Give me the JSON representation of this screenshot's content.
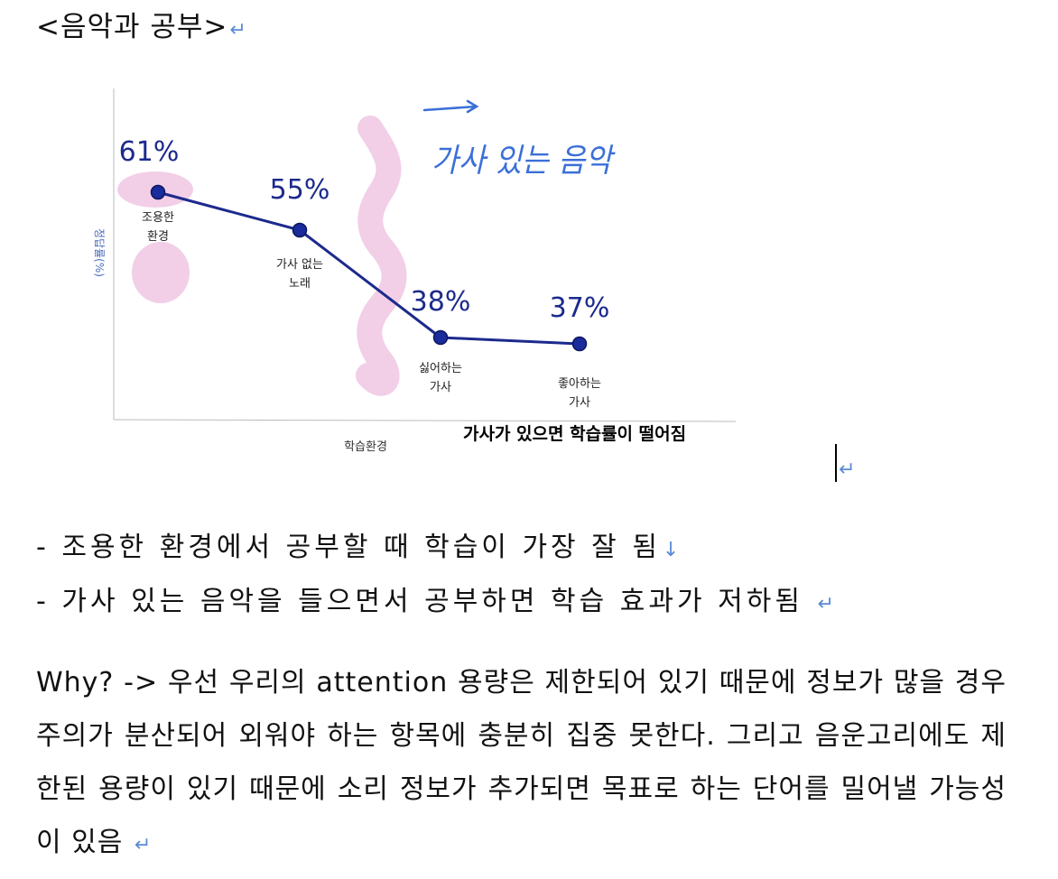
{
  "heading": "<음악과 공부>",
  "paragraph_mark": "↵",
  "line_break_mark": "↓",
  "chart_data": {
    "type": "line",
    "ylabel": "정답률(%)",
    "xlabel": "학습환경",
    "categories": [
      "조용한 환경",
      "가사 없는 노래",
      "싫어하는 가사",
      "좋아하는 가사"
    ],
    "category_lines": [
      [
        "조용한",
        "환경"
      ],
      [
        "가사 없는",
        "노래"
      ],
      [
        "싫어하는",
        "가사"
      ],
      [
        "좋아하는",
        "가사"
      ]
    ],
    "values": [
      61,
      55,
      38,
      37
    ],
    "value_labels": [
      "61%",
      "55%",
      "38%",
      "37%"
    ],
    "ylim": [
      25,
      75
    ],
    "annotations": {
      "handwritten": "가사 있는 음악",
      "caption": "가사가 있으면 학습률이 떨어짐"
    },
    "colors": {
      "line": "#1c2a8c",
      "marker": "#1a2b9c",
      "highlight": "#f1c9e4",
      "ink": "#3b6fd8",
      "axis_label": "#4a6bb8"
    }
  },
  "bullets": [
    "- 조용한 환경에서 공부할 때 학습이 가장 잘 됨",
    "- 가사 있는 음악을 들으면서 공부하면 학습 효과가 저하됨"
  ],
  "paragraph": "Why? -> 우선 우리의 attention 용량은 제한되어 있기 때문에 정보가 많을 경우 주의가 분산되어 외워야 하는 항목에 충분히 집중 못한다. 그리고 음운고리에도 제한된 용량이 있기 때문에 소리 정보가 추가되면 목표로 하는 단어를 밀어낼 가능성이 있음"
}
